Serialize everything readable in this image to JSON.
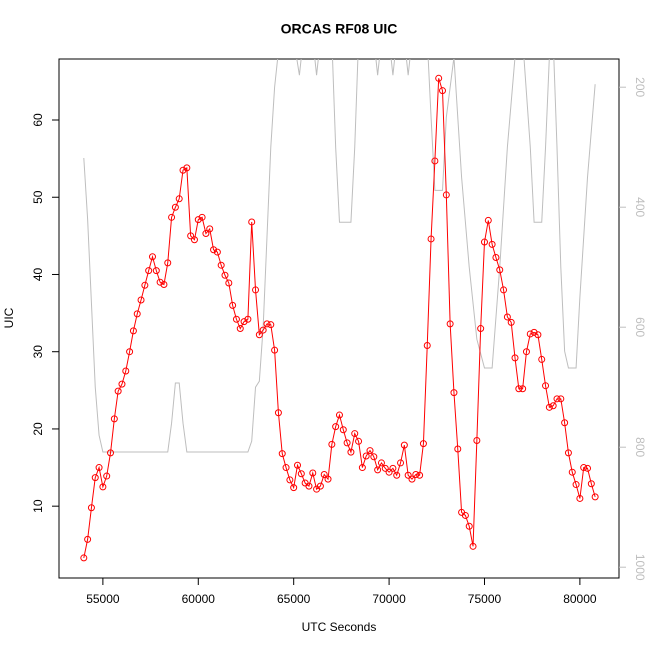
{
  "chart_data": {
    "type": "line",
    "title": "ORCAS RF08 UIC",
    "xlabel": "UTC Seconds",
    "ylabel": "UIC",
    "xlim": [
      52700,
      82050
    ],
    "xticks": [
      55000,
      60000,
      65000,
      70000,
      75000,
      80000
    ],
    "ylim": [
      0.7,
      67.9
    ],
    "yticks": [
      10,
      20,
      30,
      40,
      50,
      60
    ],
    "y2lim": [
      153,
      1018
    ],
    "y2ticks": [
      200,
      400,
      600,
      800,
      1000
    ],
    "y2_inverted": true,
    "series": [
      {
        "color": "#ff0000",
        "markers": true,
        "x": [
          54000,
          54200,
          54400,
          54600,
          54800,
          55000,
          55200,
          55400,
          55600,
          55800,
          56000,
          56200,
          56400,
          56600,
          56800,
          57000,
          57200,
          57400,
          57600,
          57800,
          58000,
          58200,
          58400,
          58600,
          58800,
          59000,
          59200,
          59400,
          59600,
          59800,
          60000,
          60200,
          60400,
          60600,
          60800,
          61000,
          61200,
          61400,
          61600,
          61800,
          62000,
          62200,
          62400,
          62600,
          62800,
          63000,
          63200,
          63400,
          63600,
          63800,
          64000,
          64200,
          64400,
          64600,
          64800,
          65000,
          65200,
          65400,
          65600,
          65800,
          66000,
          66200,
          66400,
          66600,
          66800,
          67000,
          67200,
          67400,
          67600,
          67800,
          68000,
          68200,
          68400,
          68600,
          68800,
          69000,
          69200,
          69400,
          69600,
          69800,
          70000,
          70200,
          70400,
          70600,
          70800,
          71000,
          71200,
          71400,
          71600,
          71800,
          72000,
          72200,
          72400,
          72600,
          72800,
          73000,
          73200,
          73400,
          73600,
          73800,
          74000,
          74200,
          74400,
          74600,
          74800,
          75000,
          75200,
          75400,
          75600,
          75800,
          76000,
          76200,
          76400,
          76600,
          76800,
          77000,
          77200,
          77400,
          77600,
          77800,
          78000,
          78200,
          78400,
          78600,
          78800,
          79000,
          79200,
          79400,
          79600,
          79800,
          80000,
          80200,
          80400,
          80600,
          80800
        ],
        "values": [
          3.3,
          5.7,
          9.8,
          13.7,
          15.0,
          12.5,
          13.9,
          16.9,
          21.3,
          24.9,
          25.8,
          27.5,
          30.0,
          32.7,
          34.9,
          36.7,
          38.6,
          40.5,
          42.3,
          40.5,
          39.0,
          38.7,
          41.5,
          47.4,
          48.7,
          49.8,
          53.5,
          53.8,
          45.0,
          44.5,
          47.1,
          47.4,
          45.3,
          45.9,
          43.2,
          42.9,
          41.2,
          39.9,
          38.9,
          36.0,
          34.2,
          33.0,
          33.9,
          34.2,
          46.8,
          38.0,
          32.2,
          32.8,
          33.6,
          33.5,
          30.2,
          22.1,
          16.8,
          15.0,
          13.4,
          12.4,
          15.3,
          14.2,
          13.0,
          12.6,
          14.3,
          12.2,
          12.6,
          14.1,
          13.5,
          18.0,
          20.3,
          21.8,
          19.9,
          18.2,
          17.0,
          19.4,
          18.4,
          15.0,
          16.5,
          17.2,
          16.4,
          14.7,
          15.6,
          14.9,
          14.4,
          14.9,
          14.0,
          15.6,
          17.9,
          14.0,
          13.5,
          14.1,
          14.0,
          18.1,
          30.8,
          44.6,
          54.7,
          65.4,
          63.8,
          50.3,
          33.6,
          24.7,
          17.4,
          9.2,
          8.8,
          7.4,
          4.8,
          18.5,
          33.0,
          44.2,
          47.0,
          43.9,
          42.2,
          40.6,
          38.0,
          34.5,
          33.8,
          29.2,
          25.2,
          25.2,
          30.0,
          32.3,
          32.5,
          32.2,
          29.0,
          25.6,
          22.8,
          23.0,
          23.9,
          23.9,
          20.8,
          16.9,
          14.4,
          12.8,
          11.0,
          15.0,
          14.9,
          12.9,
          11.2
        ]
      },
      {
        "color": "#bebebe",
        "axis": "y2",
        "markers": false,
        "x": [
          54000,
          54200,
          54400,
          54600,
          54800,
          55000,
          58400,
          58600,
          58800,
          59000,
          59200,
          59400,
          62600,
          62800,
          63000,
          63200,
          63400,
          63600,
          63800,
          64000,
          64200,
          64600,
          65000,
          65300,
          65500,
          66000,
          66200,
          66400,
          67000,
          67200,
          67400,
          68000,
          68200,
          68400,
          69200,
          69400,
          69600,
          70000,
          70200,
          70400,
          70800,
          71000,
          71200,
          72000,
          72200,
          72400,
          72800,
          73000,
          73400,
          73800,
          74200,
          74600,
          75000,
          75400,
          75800,
          76200,
          76600,
          77000,
          77400,
          77600,
          78000,
          78200,
          78400,
          78600,
          78800,
          79000,
          79200,
          79400,
          79800,
          80000,
          80400,
          80800
        ],
        "values": [
          318,
          420,
          560,
          700,
          780,
          808,
          808,
          760,
          693,
          693,
          760,
          808,
          808,
          790,
          700,
          690,
          600,
          450,
          300,
          200,
          140,
          100,
          120,
          180,
          120,
          120,
          180,
          120,
          120,
          300,
          425,
          425,
          300,
          120,
          120,
          180,
          120,
          120,
          180,
          120,
          120,
          180,
          120,
          120,
          250,
          372,
          372,
          250,
          150,
          350,
          500,
          620,
          668,
          668,
          500,
          300,
          150,
          120,
          300,
          425,
          425,
          300,
          150,
          120,
          300,
          500,
          640,
          668,
          668,
          550,
          350,
          195
        ]
      }
    ]
  }
}
